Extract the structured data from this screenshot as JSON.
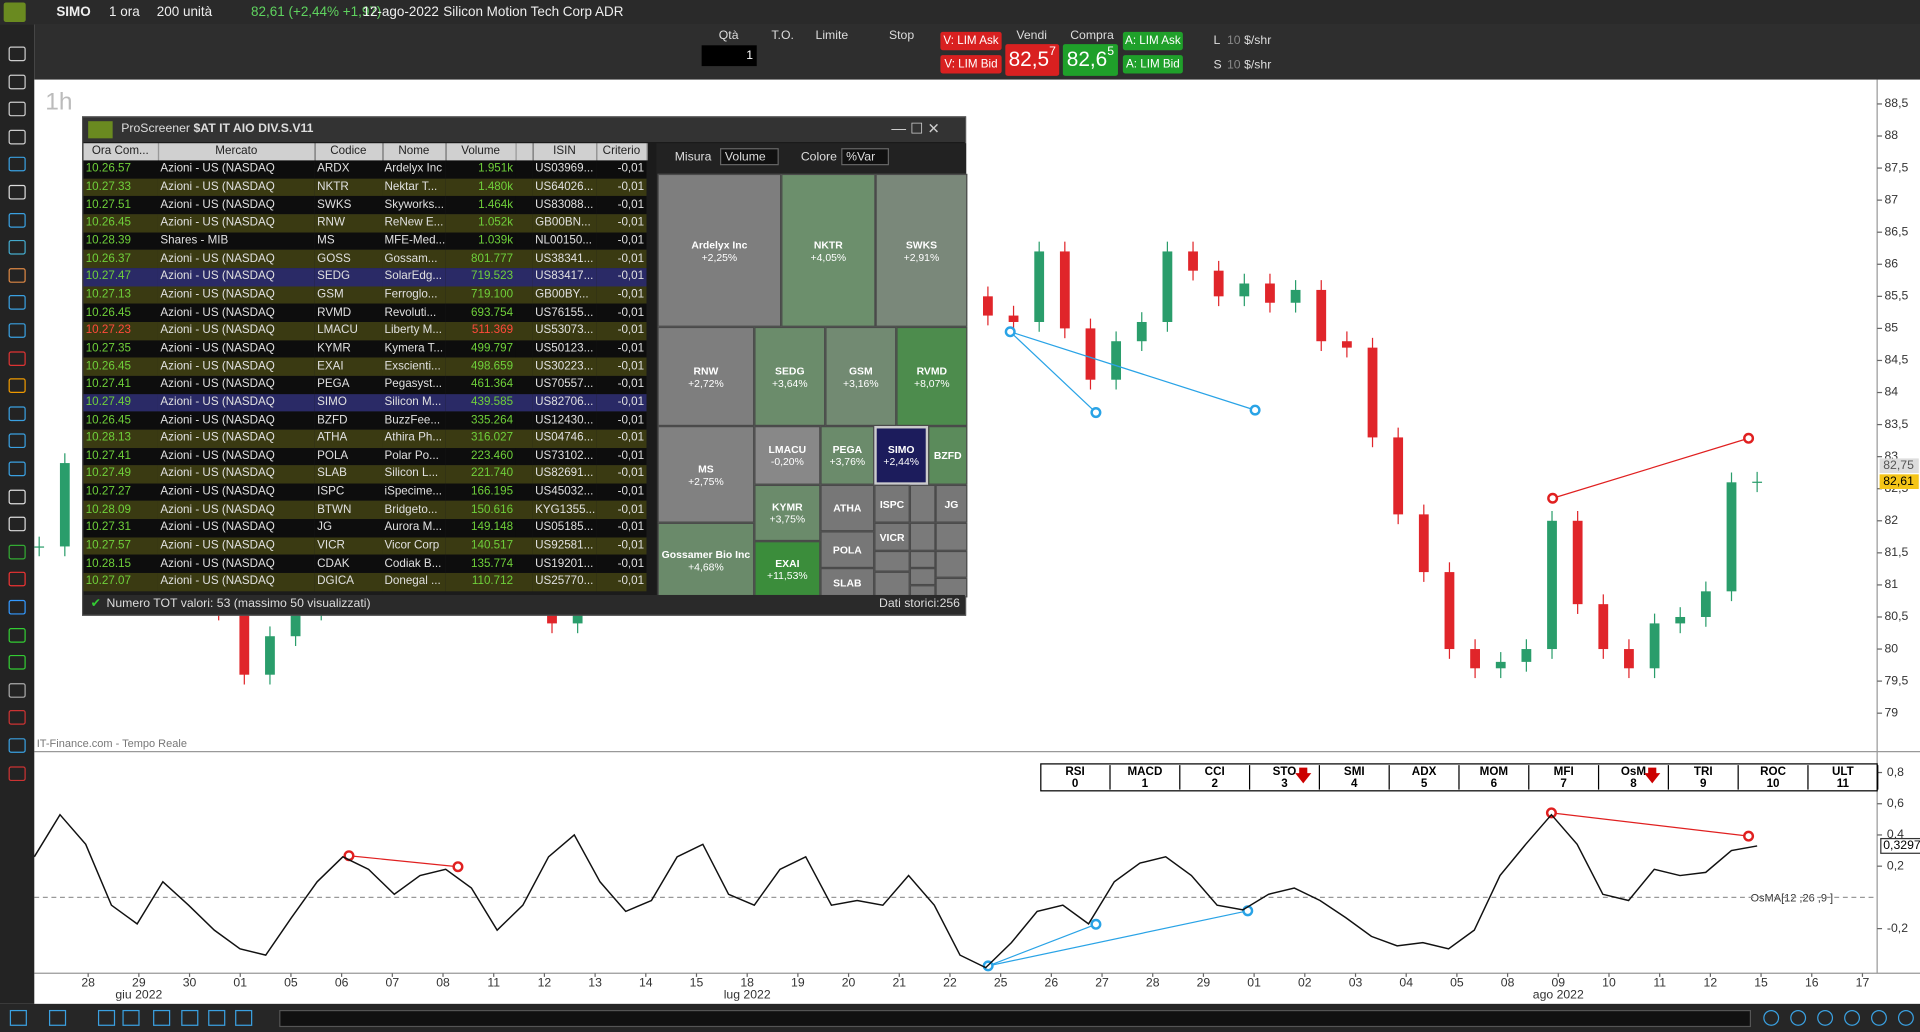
{
  "topbar": {
    "symbol": "SIMO",
    "timeframe": "1 ora",
    "units": "200 unità",
    "quote": "82,61 (+2,44% +1,97)",
    "date": "12-ago-2022",
    "name": "Silicon Motion Tech Corp ADR"
  },
  "order_bar": {
    "qty_label": "Qtà",
    "qty": "1",
    "to_label": "T.O.",
    "limit_label": "Limite",
    "stop_label": "Stop",
    "sell_ask": "V: LIM Ask",
    "sell_bid": "V: LIM Bid",
    "sell_label": "Vendi",
    "sell_price": "82,5",
    "sell_price_sup": "7",
    "buy_label": "Compra",
    "buy_price": "82,6",
    "buy_price_sup": "5",
    "buy_ask": "A: LIM Ask",
    "buy_bid": "A: LIM Bid",
    "l_label": "L",
    "l_qty": "10",
    "l_unit": "$/shr",
    "s_label": "S",
    "s_qty": "10",
    "s_unit": "$/shr"
  },
  "price_chart": {
    "timeframe_label": "1h",
    "source": "IT-Finance.com - Tempo Reale",
    "ylim": [
      78.4,
      88.88
    ],
    "yticks": [
      {
        "value": 88.5,
        "label": "88,5"
      },
      88,
      {
        "value": 87.5,
        "label": "87,5"
      },
      87,
      {
        "value": 86.5,
        "label": "86,5"
      },
      86,
      {
        "value": 85.5,
        "label": "85,5"
      },
      85,
      {
        "value": 84.5,
        "label": "84,5"
      },
      84,
      {
        "value": 83.5,
        "label": "83,5"
      },
      83,
      {
        "value": 82.5,
        "label": "82,5"
      },
      82,
      {
        "value": 81.5,
        "label": "81,5"
      },
      81,
      {
        "value": 80.5,
        "label": "80,5"
      },
      80,
      {
        "value": 79.5,
        "label": "79,5"
      },
      79
    ],
    "closes": [
      81.6,
      82.9,
      83.6,
      83.2,
      82.6,
      82.0,
      81.4,
      80.6,
      79.6,
      80.2,
      80.6,
      81.0,
      81.8,
      82.4,
      81.5,
      81.2,
      81.8,
      82.5,
      82.0,
      81.0,
      80.4,
      81.2,
      82.0,
      82.8,
      83.4,
      83.9,
      84.4,
      84.0,
      84.6,
      85.2,
      85.6,
      85.0,
      85.4,
      85.9,
      86.2,
      85.8,
      85.5,
      85.2,
      85.1,
      86.2,
      85.0,
      84.2,
      84.8,
      85.1,
      86.2,
      85.9,
      85.5,
      85.7,
      85.4,
      85.6,
      84.8,
      84.7,
      83.3,
      82.1,
      81.2,
      80.0,
      79.7,
      79.8,
      80.0,
      82.0,
      80.7,
      80.0,
      79.7,
      80.4,
      80.5,
      80.9,
      82.6,
      82.61
    ],
    "ask_label": "82,75",
    "last_label": "82,61"
  },
  "oscillator": {
    "name": "OsMA[12 ,26 ,9 ]",
    "ylim": [
      -0.486,
      0.918
    ],
    "yticks": [
      {
        "value": 0.8,
        "label": "0,8"
      },
      {
        "value": 0.6,
        "label": "0,6"
      },
      {
        "value": 0.4,
        "label": "0,4"
      },
      {
        "value": 0.2,
        "label": "0,2"
      },
      {
        "value": -0.2,
        "label": "-0,2"
      }
    ],
    "values": [
      0.26,
      0.53,
      0.34,
      -0.05,
      -0.17,
      0.1,
      -0.05,
      -0.21,
      -0.33,
      -0.37,
      -0.13,
      0.1,
      0.26,
      0.18,
      0.02,
      0.14,
      0.18,
      0.06,
      -0.21,
      -0.05,
      0.26,
      0.4,
      0.1,
      -0.09,
      -0.02,
      0.26,
      0.34,
      0.02,
      -0.05,
      0.18,
      0.26,
      -0.05,
      -0.02,
      -0.05,
      0.14,
      -0.05,
      -0.37,
      -0.45,
      -0.29,
      -0.09,
      -0.05,
      -0.17,
      0.1,
      0.22,
      0.26,
      0.14,
      -0.05,
      -0.08,
      0.02,
      0.06,
      -0.02,
      -0.13,
      -0.25,
      -0.31,
      -0.29,
      -0.33,
      -0.21,
      0.14,
      0.34,
      0.53,
      0.34,
      0.02,
      -0.02,
      0.18,
      0.14,
      0.16,
      0.3,
      0.3297
    ],
    "last_label": "0,3297"
  },
  "indicators": [
    {
      "name": "RSI",
      "number": "0"
    },
    {
      "name": "MACD",
      "number": "1"
    },
    {
      "name": "CCI",
      "number": "2"
    },
    {
      "name": "STO",
      "number": "3"
    },
    {
      "name": "SMI",
      "number": "4"
    },
    {
      "name": "ADX",
      "number": "5"
    },
    {
      "name": "MOM",
      "number": "6"
    },
    {
      "name": "MFI",
      "number": "7"
    },
    {
      "name": "OsM",
      "number": "8"
    },
    {
      "name": "TRI",
      "number": "9"
    },
    {
      "name": "ROC",
      "number": "10"
    },
    {
      "name": "ULT",
      "number": "11"
    }
  ],
  "date_axis": {
    "days": [
      "28",
      "29",
      "30",
      "01",
      "05",
      "06",
      "07",
      "08",
      "11",
      "12",
      "13",
      "14",
      "15",
      "18",
      "19",
      "20",
      "21",
      "22",
      "25",
      "26",
      "27",
      "28",
      "29",
      "01",
      "02",
      "03",
      "04",
      "05",
      "08",
      "09",
      "10",
      "11",
      "12",
      "15",
      "16",
      "17"
    ],
    "months": [
      null,
      "giu 2022",
      null,
      null,
      null,
      null,
      null,
      null,
      null,
      null,
      null,
      null,
      null,
      "lug 2022",
      null,
      null,
      null,
      null,
      null,
      null,
      null,
      null,
      null,
      null,
      null,
      null,
      null,
      null,
      null,
      "ago 2022",
      null,
      null,
      null,
      null,
      null,
      null
    ]
  },
  "screener": {
    "title": "ProScreener",
    "screen": "$AT IT AIO DIV.S.V11",
    "columns": [
      "Ora Com...",
      "Mercato",
      "Codice",
      "Nome",
      "Volume",
      "ISIN",
      "Criterio"
    ],
    "rows": [
      [
        "10.26.57",
        "Azioni - US (NASDAQ",
        "ARDX",
        "Ardelyx Inc",
        "1.951k",
        "US03969...",
        "-0,01"
      ],
      [
        "10.27.33",
        "Azioni - US (NASDAQ",
        "NKTR",
        "Nektar T...",
        "1.480k",
        "US64026...",
        "-0,01"
      ],
      [
        "10.27.51",
        "Azioni - US (NASDAQ",
        "SWKS",
        "Skyworks...",
        "1.464k",
        "US83088...",
        "-0,01"
      ],
      [
        "10.26.45",
        "Azioni - US (NASDAQ",
        "RNW",
        "ReNew E...",
        "1.052k",
        "GB00BN...",
        "-0,01"
      ],
      [
        "10.28.39",
        "Shares - MIB",
        "MS",
        "MFE-Med...",
        "1.039k",
        "NL00150...",
        "-0,01"
      ],
      [
        "10.26.37",
        "Azioni - US (NASDAQ",
        "GOSS",
        "Gossam...",
        "801.777",
        "US38341...",
        "-0,01"
      ],
      [
        "10.27.47",
        "Azioni - US (NASDAQ",
        "SEDG",
        "SolarEdg...",
        "719.523",
        "US83417...",
        "-0,01"
      ],
      [
        "10.27.13",
        "Azioni - US (NASDAQ",
        "GSM",
        "Ferroglo...",
        "719.100",
        "GB00BY...",
        "-0,01"
      ],
      [
        "10.26.45",
        "Azioni - US (NASDAQ",
        "RVMD",
        "Revoluti...",
        "693.754",
        "US76155...",
        "-0,01"
      ],
      [
        "10.27.23",
        "Azioni - US (NASDAQ",
        "LMACU",
        "Liberty M...",
        "511.369",
        "US53073...",
        "-0,01"
      ],
      [
        "10.27.35",
        "Azioni - US (NASDAQ",
        "KYMR",
        "Kymera T...",
        "499.797",
        "US50123...",
        "-0,01"
      ],
      [
        "10.26.45",
        "Azioni - US (NASDAQ",
        "EXAI",
        "Exscienti...",
        "498.659",
        "US30223...",
        "-0,01"
      ],
      [
        "10.27.41",
        "Azioni - US (NASDAQ",
        "PEGA",
        "Pegasyst...",
        "461.364",
        "US70557...",
        "-0,01"
      ],
      [
        "10.27.49",
        "Azioni - US (NASDAQ",
        "SIMO",
        "Silicon M...",
        "439.585",
        "US82706...",
        "-0,01"
      ],
      [
        "10.26.45",
        "Azioni - US (NASDAQ",
        "BZFD",
        "BuzzFee...",
        "335.264",
        "US12430...",
        "-0,01"
      ],
      [
        "10.28.13",
        "Azioni - US (NASDAQ",
        "ATHA",
        "Athira Ph...",
        "316.027",
        "US04746...",
        "-0,01"
      ],
      [
        "10.27.41",
        "Azioni - US (NASDAQ",
        "POLA",
        "Polar Po...",
        "223.460",
        "US73102...",
        "-0,01"
      ],
      [
        "10.27.49",
        "Azioni - US (NASDAQ",
        "SLAB",
        "Silicon L...",
        "221.740",
        "US82691...",
        "-0,01"
      ],
      [
        "10.27.27",
        "Azioni - US (NASDAQ",
        "ISPC",
        "iSpecime...",
        "166.195",
        "US45032...",
        "-0,01"
      ],
      [
        "10.28.09",
        "Azioni - US (NASDAQ",
        "BTWN",
        "Bridgeto...",
        "150.616",
        "KYG1355...",
        "-0,01"
      ],
      [
        "10.27.31",
        "Azioni - US (NASDAQ",
        "JG",
        "Aurora M...",
        "149.148",
        "US05185...",
        "-0,01"
      ],
      [
        "10.27.57",
        "Azioni - US (NASDAQ",
        "VICR",
        "Vicor Corp",
        "140.517",
        "US92581...",
        "-0,01"
      ],
      [
        "10.28.15",
        "Azioni - US (NASDAQ",
        "CDAK",
        "Codiak B...",
        "135.774",
        "US19201...",
        "-0,01"
      ],
      [
        "10.27.07",
        "Azioni - US (NASDAQ",
        "DGICA",
        "Donegal ...",
        "110.712",
        "US25770...",
        "-0,01"
      ]
    ],
    "footer": "Numero TOT valori: 53 (massimo 50 visualizzati)",
    "history": "Dati storici:256",
    "measure_label": "Misura",
    "measure": "Volume",
    "color_label": "Colore",
    "color_by": "%Var",
    "treemap": [
      {
        "name": "Ardelyx Inc",
        "change": "+2,25%"
      },
      {
        "name": "NKTR",
        "change": "+4,05%"
      },
      {
        "name": "SWKS",
        "change": "+2,91%"
      },
      {
        "name": "RNW",
        "change": "+2,72%"
      },
      {
        "name": "SEDG",
        "change": "+3,64%"
      },
      {
        "name": "GSM",
        "change": "+3,16%"
      },
      {
        "name": "RVMD",
        "change": "+8,07%"
      },
      {
        "name": "MS",
        "change": "+2,75%"
      },
      {
        "name": "LMACU",
        "change": "-0,20%"
      },
      {
        "name": "PEGA",
        "change": "+3,76%"
      },
      {
        "name": "SIMO",
        "change": "+2,44%"
      },
      {
        "name": "BZFD"
      },
      {
        "name": "KYMR",
        "change": "+3,75%"
      },
      {
        "name": "ATHA"
      },
      {
        "name": "ISPC"
      },
      {
        "name": "JG"
      },
      {
        "name": "POLA"
      },
      {
        "name": "VICR"
      },
      {
        "name": "EXAI",
        "change": "+11,53%"
      },
      {
        "name": "SLAB"
      },
      {
        "name": "Gossamer Bio Inc",
        "change": "+4,68%"
      }
    ]
  }
}
